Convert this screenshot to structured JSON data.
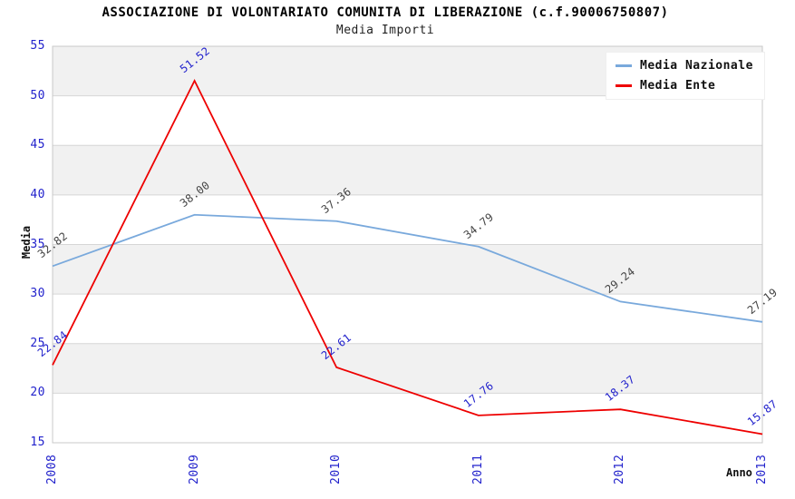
{
  "header": {
    "title": "ASSOCIAZIONE DI VOLONTARIATO COMUNITA DI LIBERAZIONE (c.f.90006750807)",
    "subtitle": "Media Importi"
  },
  "axes": {
    "y_title": "Media",
    "x_title": "Anno",
    "y_tick_labels": [
      "55",
      "50",
      "45",
      "40",
      "35",
      "30",
      "25",
      "20",
      "15"
    ],
    "x_tick_labels": [
      "2008",
      "2009",
      "2010",
      "2011",
      "2012",
      "2013"
    ],
    "tick_label_color": "#2222cc"
  },
  "legend": {
    "position": "top-right",
    "items": [
      {
        "label": "Media Nazionale",
        "color": "#79a9dc"
      },
      {
        "label": "Media Ente",
        "color": "#ee0000"
      }
    ]
  },
  "chart_data": {
    "type": "line",
    "title": "ASSOCIAZIONE DI VOLONTARIATO COMUNITA DI LIBERAZIONE (c.f.90006750807)",
    "subtitle": "Media Importi",
    "xlabel": "Anno",
    "ylabel": "Media",
    "x_categories": [
      "2008",
      "2009",
      "2010",
      "2011",
      "2012",
      "2013"
    ],
    "series": [
      {
        "name": "Media Nazionale",
        "color": "#79a9dc",
        "label_color": "#444444",
        "values": [
          32.82,
          38.0,
          37.36,
          34.79,
          29.24,
          27.19
        ],
        "labels": [
          "32.82",
          "38.00",
          "37.36",
          "34.79",
          "29.24",
          "27.19"
        ]
      },
      {
        "name": "Media Ente",
        "color": "#ee0000",
        "label_color": "#2222cc",
        "values": [
          22.84,
          51.52,
          22.61,
          17.76,
          18.37,
          15.87
        ],
        "labels": [
          "22.84",
          "51.52",
          "22.61",
          "17.76",
          "18.37",
          "15.87"
        ]
      }
    ],
    "ylim": [
      15,
      55
    ],
    "y_tick_step": 5,
    "grid": "horizontal-bands-alternating",
    "band_color": "#f1f1f1",
    "grid_color": "#d6d6d6",
    "plot_border_color": "#c8c8c8",
    "legend_position": "top-right"
  }
}
